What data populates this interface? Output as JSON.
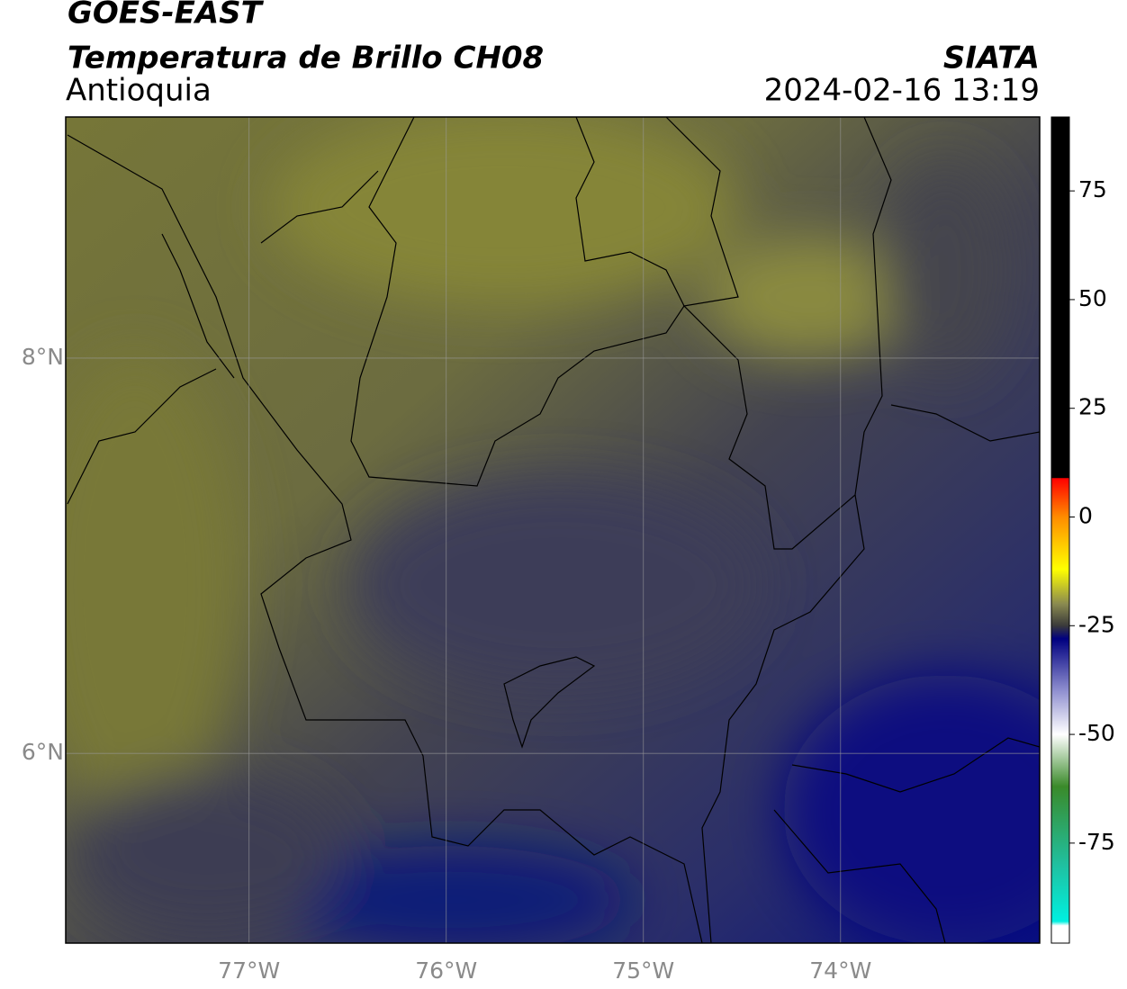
{
  "header": {
    "satellite": "GOES-EAST",
    "product": "Temperatura de Brillo CH08",
    "region": "Antioquia",
    "agency": "SIATA",
    "datetime": "2024-02-16 13:19"
  },
  "map": {
    "lonlim": [
      -77.93,
      -72.99
    ],
    "latlim": [
      5.04,
      9.22
    ],
    "lonticks": [
      {
        "value": -77,
        "label": "77°W"
      },
      {
        "value": -76,
        "label": "76°W"
      },
      {
        "value": -75,
        "label": "75°W"
      },
      {
        "value": -74,
        "label": "74°W"
      }
    ],
    "latticks": [
      {
        "value": 8,
        "label": "8°N"
      },
      {
        "value": 6,
        "label": "6°N"
      }
    ],
    "grid": true
  },
  "colorbar": {
    "lim": [
      -98,
      92
    ],
    "ticks": [
      75,
      50,
      25,
      0,
      -25,
      -50,
      -75
    ],
    "stops": [
      {
        "value": 92,
        "color": "#000000"
      },
      {
        "value": 9,
        "color": "#000000"
      },
      {
        "value": 8.9,
        "color": "#ff0000"
      },
      {
        "value": 0,
        "color": "#ff8c00"
      },
      {
        "value": -12,
        "color": "#ffff00"
      },
      {
        "value": -20,
        "color": "#8a8a50"
      },
      {
        "value": -25,
        "color": "#3a3a3a"
      },
      {
        "value": -28,
        "color": "#000080"
      },
      {
        "value": -40,
        "color": "#9090d0"
      },
      {
        "value": -50,
        "color": "#ffffff"
      },
      {
        "value": -62,
        "color": "#3a8a2a"
      },
      {
        "value": -80,
        "color": "#20c0a0"
      },
      {
        "value": -93,
        "color": "#00f0e0"
      },
      {
        "value": -94,
        "color": "#ffffff"
      },
      {
        "value": -98,
        "color": "#ffffff"
      }
    ]
  }
}
